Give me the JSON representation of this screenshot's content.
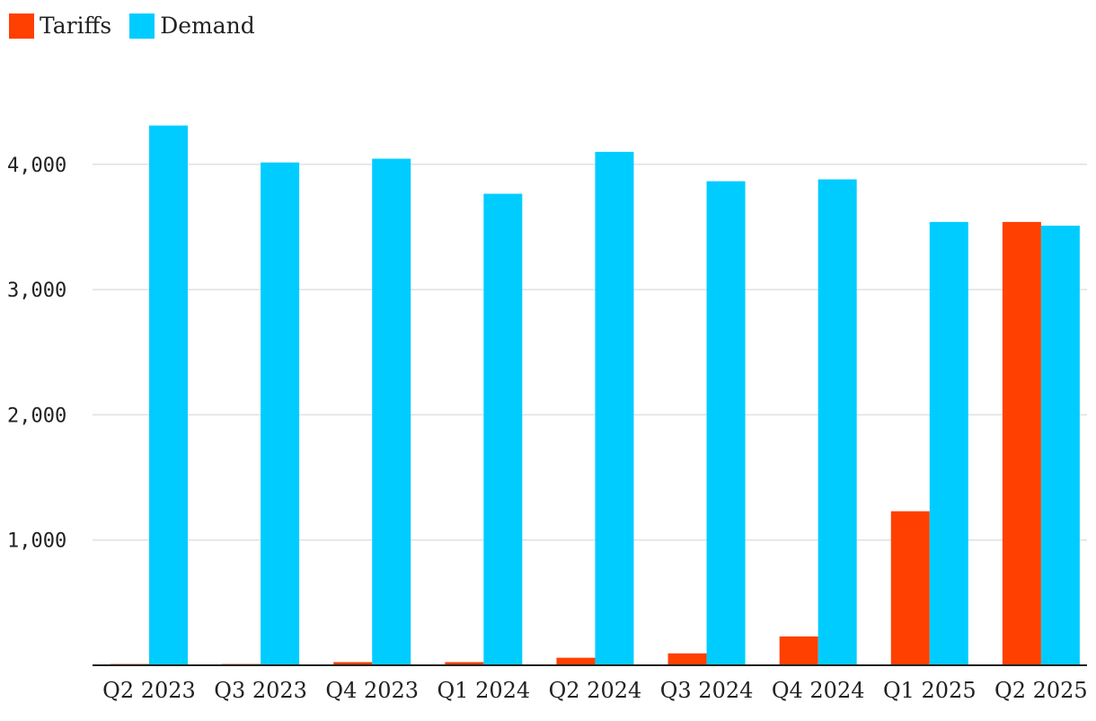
{
  "chart_data": {
    "type": "bar",
    "categories": [
      "Q2 2023",
      "Q3 2023",
      "Q4 2023",
      "Q1 2024",
      "Q2 2024",
      "Q3 2024",
      "Q4 2024",
      "Q1 2025",
      "Q2 2025"
    ],
    "series": [
      {
        "name": "Tariffs",
        "color": "#ff4000",
        "values": [
          10,
          10,
          25,
          25,
          60,
          95,
          230,
          1230,
          3540
        ]
      },
      {
        "name": "Demand",
        "color": "#00ccff",
        "values": [
          4310,
          4015,
          4045,
          3765,
          4100,
          3865,
          3880,
          3540,
          3510
        ]
      }
    ],
    "yticks": [
      1000,
      2000,
      3000,
      4000
    ],
    "ytick_labels": [
      "1,000",
      "2,000",
      "3,000",
      "4,000"
    ],
    "ylim": [
      0,
      4500
    ],
    "grid": true,
    "legend_position": "top-left"
  }
}
